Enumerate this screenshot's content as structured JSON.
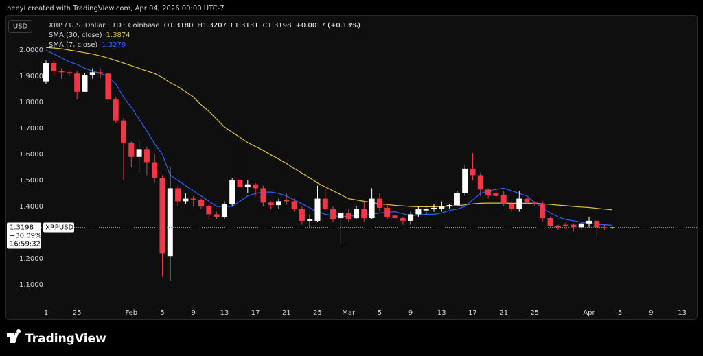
{
  "header": {
    "attribution": "neeyi created with TradingView.com, Apr 04, 2026 00:00 UTC-7",
    "currency_button": "USD",
    "brand": "TradingView"
  },
  "chart_data": {
    "type": "candlestick",
    "legend": {
      "symbol": "XRP / U.S. Dollar · 1D · Coinbase",
      "quote": [
        {
          "key": "O",
          "value": 1.318,
          "label": "1.3180"
        },
        {
          "key": "H",
          "value": 1.3207,
          "label": "1.3207"
        },
        {
          "key": "L",
          "value": 1.3131,
          "label": "1.3131"
        },
        {
          "key": "C",
          "value": 1.3198,
          "label": "1.3198"
        }
      ],
      "change": "+0.0017 (+0.13%)"
    },
    "price_tag": {
      "price": 1.3198,
      "symbol": "XRPUSD",
      "change": "−30.09%",
      "countdown": "16:59:32"
    },
    "up_color": "#ffffff",
    "down_color": "#f23645",
    "grid": false,
    "ylim": [
      1.02,
      2.12
    ],
    "yticks": [
      {
        "value": 2.0,
        "label": "2.0000"
      },
      {
        "value": 1.9,
        "label": "1.9000"
      },
      {
        "value": 1.8,
        "label": "1.8000"
      },
      {
        "value": 1.7,
        "label": "1.7000"
      },
      {
        "value": 1.6,
        "label": "1.6000"
      },
      {
        "value": 1.5,
        "label": "1.5000"
      },
      {
        "value": 1.4,
        "label": "1.4000"
      },
      {
        "value": 1.2,
        "label": "1.2000"
      },
      {
        "value": 1.1,
        "label": "1.1000"
      }
    ],
    "categories": [
      "1",
      null,
      null,
      null,
      "25",
      null,
      null,
      null,
      null,
      null,
      null,
      "Feb",
      null,
      null,
      null,
      "5",
      null,
      null,
      null,
      "9",
      null,
      null,
      null,
      "13",
      null,
      null,
      null,
      "17",
      null,
      null,
      null,
      "21",
      null,
      null,
      null,
      "25",
      null,
      null,
      null,
      "Mar",
      null,
      null,
      null,
      "5",
      null,
      null,
      null,
      "9",
      null,
      null,
      null,
      "13",
      null,
      null,
      null,
      "17",
      null,
      null,
      null,
      "21",
      null,
      null,
      null,
      "25",
      null,
      null,
      null,
      null,
      null,
      null,
      "Apr",
      null,
      null,
      null,
      "5",
      null,
      null,
      null,
      "9",
      null,
      null,
      null,
      "13"
    ],
    "open": [
      1.88,
      1.95,
      1.92,
      1.915,
      1.91,
      1.84,
      1.905,
      1.915,
      1.91,
      1.81,
      1.73,
      1.645,
      1.59,
      1.62,
      1.57,
      1.51,
      1.21,
      1.47,
      1.42,
      1.43,
      1.425,
      1.4,
      1.37,
      1.36,
      1.41,
      1.5,
      1.475,
      1.485,
      1.47,
      1.415,
      1.405,
      1.425,
      1.42,
      1.39,
      1.345,
      1.345,
      1.43,
      1.39,
      1.355,
      1.375,
      1.355,
      1.39,
      1.355,
      1.43,
      1.395,
      1.365,
      1.355,
      1.345,
      1.37,
      1.385,
      1.39,
      1.39,
      1.4,
      1.405,
      1.45,
      1.545,
      1.52,
      1.465,
      1.45,
      1.445,
      1.41,
      1.39,
      1.43,
      1.415,
      1.41,
      1.355,
      1.325,
      1.33,
      1.33,
      1.32,
      1.335,
      1.345,
      1.32,
      1.318,
      null,
      null,
      null,
      null,
      null,
      null,
      null,
      null,
      null
    ],
    "high": [
      1.96,
      1.96,
      1.93,
      1.92,
      1.92,
      1.91,
      1.93,
      1.93,
      1.91,
      1.82,
      1.74,
      1.65,
      1.65,
      1.63,
      1.6,
      1.52,
      1.55,
      1.48,
      1.45,
      1.44,
      1.43,
      1.41,
      1.38,
      1.42,
      1.51,
      1.67,
      1.5,
      1.49,
      1.48,
      1.42,
      1.43,
      1.45,
      1.43,
      1.4,
      1.37,
      1.48,
      1.47,
      1.4,
      1.38,
      1.39,
      1.4,
      1.42,
      1.47,
      1.45,
      1.41,
      1.37,
      1.36,
      1.38,
      1.4,
      1.4,
      1.41,
      1.42,
      1.41,
      1.46,
      1.56,
      1.605,
      1.53,
      1.47,
      1.46,
      1.46,
      1.42,
      1.46,
      1.44,
      1.42,
      1.42,
      1.36,
      1.33,
      1.34,
      1.335,
      1.34,
      1.36,
      1.35,
      1.33,
      1.3207,
      null,
      null,
      null,
      null,
      null,
      null,
      null,
      null,
      null
    ],
    "low": [
      1.87,
      1.9,
      1.89,
      1.9,
      1.81,
      1.84,
      1.89,
      1.89,
      1.8,
      1.72,
      1.5,
      1.55,
      1.53,
      1.52,
      1.49,
      1.13,
      1.116,
      1.4,
      1.41,
      1.4,
      1.39,
      1.35,
      1.35,
      1.35,
      1.4,
      1.43,
      1.45,
      1.44,
      1.4,
      1.39,
      1.39,
      1.41,
      1.38,
      1.33,
      1.32,
      1.34,
      1.38,
      1.34,
      1.26,
      1.34,
      1.35,
      1.34,
      1.35,
      1.38,
      1.35,
      1.34,
      1.33,
      1.33,
      1.36,
      1.37,
      1.38,
      1.38,
      1.39,
      1.4,
      1.44,
      1.5,
      1.44,
      1.43,
      1.43,
      1.4,
      1.38,
      1.38,
      1.41,
      1.4,
      1.34,
      1.32,
      1.31,
      1.31,
      1.305,
      1.31,
      1.32,
      1.28,
      1.31,
      1.3131,
      null,
      null,
      null,
      null,
      null,
      null,
      null,
      null,
      null
    ],
    "close": [
      1.95,
      1.92,
      1.915,
      1.91,
      1.84,
      1.905,
      1.915,
      1.91,
      1.81,
      1.73,
      1.645,
      1.59,
      1.62,
      1.57,
      1.51,
      1.22,
      1.47,
      1.42,
      1.43,
      1.425,
      1.4,
      1.37,
      1.36,
      1.41,
      1.5,
      1.475,
      1.485,
      1.47,
      1.415,
      1.405,
      1.42,
      1.42,
      1.39,
      1.345,
      1.35,
      1.43,
      1.39,
      1.35,
      1.375,
      1.35,
      1.39,
      1.355,
      1.43,
      1.395,
      1.36,
      1.355,
      1.345,
      1.37,
      1.39,
      1.39,
      1.395,
      1.4,
      1.405,
      1.45,
      1.545,
      1.52,
      1.465,
      1.445,
      1.44,
      1.41,
      1.39,
      1.43,
      1.415,
      1.41,
      1.355,
      1.325,
      1.32,
      1.325,
      1.32,
      1.335,
      1.345,
      1.32,
      1.318,
      1.3198,
      null,
      null,
      null,
      null,
      null,
      null,
      null,
      null,
      null
    ],
    "series": [
      {
        "name": "SMA (30, close)",
        "color": "#e2c43b",
        "value_label": "1.3874",
        "values": [
          2.01,
          2.008,
          2.005,
          2.0,
          1.995,
          1.99,
          1.985,
          1.978,
          1.97,
          1.96,
          1.95,
          1.94,
          1.93,
          1.92,
          1.91,
          1.895,
          1.875,
          1.86,
          1.84,
          1.82,
          1.79,
          1.765,
          1.735,
          1.705,
          1.685,
          1.665,
          1.645,
          1.63,
          1.615,
          1.598,
          1.582,
          1.565,
          1.545,
          1.528,
          1.51,
          1.49,
          1.475,
          1.46,
          1.445,
          1.43,
          1.425,
          1.42,
          1.415,
          1.41,
          1.407,
          1.404,
          1.402,
          1.4,
          1.399,
          1.399,
          1.399,
          1.4,
          1.401,
          1.403,
          1.406,
          1.41,
          1.412,
          1.413,
          1.413,
          1.413,
          1.412,
          1.412,
          1.412,
          1.412,
          1.41,
          1.408,
          1.405,
          1.403,
          1.4,
          1.398,
          1.396,
          1.393,
          1.39,
          1.3874,
          null,
          null,
          null,
          null,
          null,
          null,
          null,
          null,
          null
        ]
      },
      {
        "name": "SMA (7, close)",
        "color": "#2962ff",
        "value_label": "1.3279",
        "values": [
          2.0,
          1.985,
          1.97,
          1.955,
          1.945,
          1.93,
          1.92,
          1.91,
          1.9,
          1.87,
          1.82,
          1.78,
          1.735,
          1.69,
          1.64,
          1.6,
          1.52,
          1.5,
          1.48,
          1.46,
          1.44,
          1.42,
          1.4,
          1.4,
          1.4,
          1.42,
          1.44,
          1.45,
          1.455,
          1.455,
          1.45,
          1.44,
          1.425,
          1.41,
          1.395,
          1.38,
          1.37,
          1.365,
          1.36,
          1.362,
          1.365,
          1.368,
          1.37,
          1.375,
          1.378,
          1.38,
          1.372,
          1.365,
          1.367,
          1.37,
          1.37,
          1.375,
          1.385,
          1.39,
          1.4,
          1.425,
          1.45,
          1.46,
          1.465,
          1.47,
          1.46,
          1.45,
          1.44,
          1.415,
          1.395,
          1.375,
          1.36,
          1.35,
          1.345,
          1.34,
          1.335,
          1.332,
          1.33,
          1.3279,
          null,
          null,
          null,
          null,
          null,
          null,
          null,
          null,
          null
        ]
      }
    ]
  }
}
